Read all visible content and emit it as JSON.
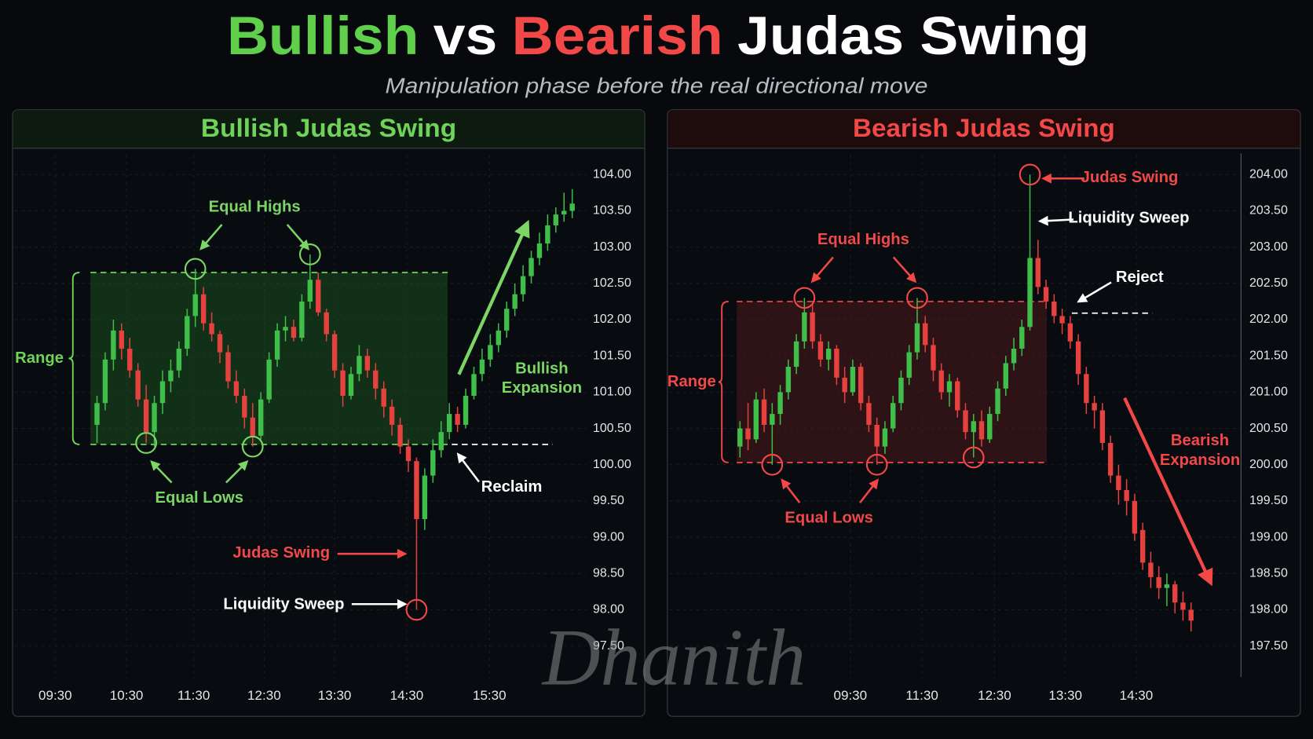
{
  "header": {
    "title_parts": [
      {
        "text": "Bullish",
        "color": "#5fcf4c"
      },
      {
        "text": "vs",
        "color": "#ffffff"
      },
      {
        "text": "Bearish",
        "color": "#f24848"
      },
      {
        "text": "Judas Swing",
        "color": "#ffffff"
      }
    ],
    "subtitle": "Manipulation phase before the real directional move",
    "watermark": "Dhanith"
  },
  "chart_data": [
    {
      "type": "candlestick",
      "title": "Bullish Judas Swing",
      "title_color": "#6fd35a",
      "up_color": "#3fbf4a",
      "down_color": "#e5413f",
      "grid": true,
      "ohlc": [
        [
          100.55,
          100.95,
          100.3,
          100.85
        ],
        [
          100.85,
          101.55,
          100.75,
          101.45
        ],
        [
          101.45,
          102.0,
          101.3,
          101.85
        ],
        [
          101.85,
          101.95,
          101.45,
          101.6
        ],
        [
          101.6,
          101.75,
          101.2,
          101.3
        ],
        [
          101.3,
          101.4,
          100.8,
          100.9
        ],
        [
          100.9,
          101.1,
          100.3,
          100.45
        ],
        [
          100.45,
          100.95,
          100.25,
          100.85
        ],
        [
          100.85,
          101.3,
          100.7,
          101.15
        ],
        [
          101.15,
          101.45,
          101.0,
          101.3
        ],
        [
          101.3,
          101.7,
          101.2,
          101.6
        ],
        [
          101.6,
          102.15,
          101.5,
          102.05
        ],
        [
          102.05,
          102.7,
          101.9,
          102.35
        ],
        [
          102.35,
          102.45,
          101.85,
          101.95
        ],
        [
          101.95,
          102.1,
          101.7,
          101.8
        ],
        [
          101.8,
          101.85,
          101.4,
          101.55
        ],
        [
          101.55,
          101.65,
          101.05,
          101.15
        ],
        [
          101.15,
          101.3,
          100.85,
          100.95
        ],
        [
          100.95,
          101.05,
          100.5,
          100.65
        ],
        [
          100.65,
          100.85,
          100.25,
          100.4
        ],
        [
          100.4,
          101.0,
          100.35,
          100.9
        ],
        [
          100.9,
          101.55,
          100.85,
          101.45
        ],
        [
          101.45,
          101.95,
          101.35,
          101.85
        ],
        [
          101.85,
          102.05,
          101.7,
          101.9
        ],
        [
          101.9,
          102.0,
          101.7,
          101.75
        ],
        [
          101.75,
          102.35,
          101.7,
          102.25
        ],
        [
          102.25,
          102.9,
          102.15,
          102.55
        ],
        [
          102.55,
          102.65,
          102.05,
          102.1
        ],
        [
          102.1,
          102.15,
          101.7,
          101.8
        ],
        [
          101.8,
          101.85,
          101.2,
          101.3
        ],
        [
          101.3,
          101.4,
          100.8,
          100.95
        ],
        [
          100.95,
          101.35,
          100.9,
          101.25
        ],
        [
          101.25,
          101.65,
          101.15,
          101.5
        ],
        [
          101.5,
          101.6,
          101.2,
          101.3
        ],
        [
          101.3,
          101.4,
          100.9,
          101.05
        ],
        [
          101.05,
          101.15,
          100.65,
          100.8
        ],
        [
          100.8,
          100.9,
          100.4,
          100.55
        ],
        [
          100.55,
          100.65,
          100.15,
          100.25
        ],
        [
          100.25,
          100.35,
          99.9,
          100.05
        ],
        [
          100.05,
          100.1,
          98.0,
          99.25
        ],
        [
          99.25,
          99.95,
          99.1,
          99.85
        ],
        [
          99.85,
          100.35,
          99.75,
          100.2
        ],
        [
          100.2,
          100.6,
          100.1,
          100.45
        ],
        [
          100.45,
          100.85,
          100.35,
          100.7
        ],
        [
          100.7,
          100.8,
          100.45,
          100.55
        ],
        [
          100.55,
          101.05,
          100.5,
          100.95
        ],
        [
          100.95,
          101.35,
          100.9,
          101.25
        ],
        [
          101.25,
          101.6,
          101.15,
          101.45
        ],
        [
          101.45,
          101.8,
          101.35,
          101.65
        ],
        [
          101.65,
          101.95,
          101.55,
          101.85
        ],
        [
          101.85,
          102.25,
          101.75,
          102.15
        ],
        [
          102.15,
          102.5,
          102.05,
          102.35
        ],
        [
          102.35,
          102.75,
          102.25,
          102.6
        ],
        [
          102.6,
          102.95,
          102.5,
          102.85
        ],
        [
          102.85,
          103.2,
          102.75,
          103.05
        ],
        [
          103.05,
          103.45,
          102.95,
          103.3
        ],
        [
          103.3,
          103.55,
          103.2,
          103.45
        ],
        [
          103.45,
          103.75,
          103.35,
          103.5
        ],
        [
          103.5,
          103.8,
          103.4,
          103.6
        ]
      ],
      "xlim": [
        -10,
        59.7
      ],
      "xticks": [
        {
          "value": -5.1,
          "label": "09:30"
        },
        {
          "value": 3.6,
          "label": "10:30"
        },
        {
          "value": 11.8,
          "label": "11:30"
        },
        {
          "value": 20.4,
          "label": "12:30"
        },
        {
          "value": 29.0,
          "label": "13:30"
        },
        {
          "value": 37.8,
          "label": "14:30"
        },
        {
          "value": 47.9,
          "label": "15:30"
        }
      ],
      "ylim": [
        97.05,
        104.27
      ],
      "yticks": [
        {
          "value": 97.5,
          "label": "97.50"
        },
        {
          "value": 98,
          "label": "98.00"
        },
        {
          "value": 98.5,
          "label": "98.50"
        },
        {
          "value": 99,
          "label": "99.00"
        },
        {
          "value": 99.5,
          "label": "99.50"
        },
        {
          "value": 100,
          "label": "100.00"
        },
        {
          "value": 100.5,
          "label": "100.50"
        },
        {
          "value": 101,
          "label": "101.00"
        },
        {
          "value": 101.5,
          "label": "101.50"
        },
        {
          "value": 102,
          "label": "102.00"
        },
        {
          "value": 102.5,
          "label": "102.50"
        },
        {
          "value": 103,
          "label": "103.00"
        },
        {
          "value": 103.5,
          "label": "103.50"
        },
        {
          "value": 104,
          "label": "104.00"
        }
      ],
      "range": {
        "label": "Range",
        "high": 102.65,
        "low": 100.28,
        "color": "#6fd35a",
        "fill": "#1f5a24"
      },
      "reference_level": 100.28,
      "annotations": [
        {
          "lines": [
            "Equal Highs"
          ],
          "color": "#7bd665"
        },
        {
          "lines": [
            "Equal Lows"
          ],
          "color": "#7bd665"
        },
        {
          "lines": [
            "Bullish",
            "Expansion"
          ],
          "color": "#7bd665"
        },
        {
          "lines": [
            "Reclaim"
          ],
          "color": "#ffffff"
        },
        {
          "lines": [
            "Judas Swing"
          ],
          "color": "#f24848"
        },
        {
          "lines": [
            "Liquidity Sweep"
          ],
          "color": "#ffffff"
        }
      ]
    },
    {
      "type": "candlestick",
      "title": "Bearish Judas Swing",
      "title_color": "#f24848",
      "up_color": "#3fbf4a",
      "down_color": "#e5413f",
      "grid": true,
      "ohlc": [
        [
          200.25,
          200.6,
          200.1,
          200.5
        ],
        [
          200.5,
          200.85,
          200.2,
          200.35
        ],
        [
          200.35,
          201.0,
          200.3,
          200.9
        ],
        [
          200.9,
          201.05,
          200.45,
          200.55
        ],
        [
          200.55,
          200.85,
          200.0,
          200.7
        ],
        [
          200.7,
          201.1,
          200.55,
          201.0
        ],
        [
          201.0,
          201.45,
          200.9,
          201.35
        ],
        [
          201.35,
          201.8,
          201.25,
          201.7
        ],
        [
          201.7,
          202.3,
          201.6,
          202.1
        ],
        [
          202.1,
          202.2,
          201.6,
          201.7
        ],
        [
          201.7,
          201.8,
          201.35,
          201.45
        ],
        [
          201.45,
          201.7,
          201.3,
          201.6
        ],
        [
          201.6,
          201.65,
          201.1,
          201.2
        ],
        [
          201.2,
          201.35,
          200.85,
          201.0
        ],
        [
          201.0,
          201.45,
          200.95,
          201.35
        ],
        [
          201.35,
          201.4,
          200.75,
          200.85
        ],
        [
          200.85,
          200.95,
          200.45,
          200.55
        ],
        [
          200.55,
          200.65,
          200.0,
          200.25
        ],
        [
          200.25,
          200.6,
          200.15,
          200.5
        ],
        [
          200.5,
          200.95,
          200.45,
          200.85
        ],
        [
          200.85,
          201.3,
          200.75,
          201.2
        ],
        [
          201.2,
          201.65,
          201.1,
          201.55
        ],
        [
          201.55,
          202.3,
          201.45,
          201.95
        ],
        [
          201.95,
          202.05,
          201.55,
          201.65
        ],
        [
          201.65,
          201.75,
          201.15,
          201.3
        ],
        [
          201.3,
          201.4,
          200.9,
          201.0
        ],
        [
          201.0,
          201.25,
          200.8,
          201.15
        ],
        [
          201.15,
          201.2,
          200.65,
          200.75
        ],
        [
          200.75,
          200.85,
          200.35,
          200.45
        ],
        [
          200.45,
          200.7,
          200.1,
          200.6
        ],
        [
          200.6,
          200.75,
          200.25,
          200.35
        ],
        [
          200.35,
          200.8,
          200.3,
          200.7
        ],
        [
          200.7,
          201.15,
          200.6,
          201.05
        ],
        [
          201.05,
          201.5,
          200.95,
          201.4
        ],
        [
          201.4,
          201.75,
          201.3,
          201.6
        ],
        [
          201.6,
          202.0,
          201.5,
          201.9
        ],
        [
          201.9,
          204.0,
          201.85,
          202.85
        ],
        [
          202.85,
          203.1,
          202.35,
          202.45
        ],
        [
          202.45,
          202.55,
          202.15,
          202.25
        ],
        [
          202.25,
          202.35,
          201.95,
          202.05
        ],
        [
          202.05,
          202.15,
          201.8,
          201.95
        ],
        [
          201.95,
          202.05,
          201.6,
          201.7
        ],
        [
          201.7,
          201.8,
          201.1,
          201.25
        ],
        [
          201.25,
          201.35,
          200.7,
          200.85
        ],
        [
          200.85,
          200.95,
          200.5,
          200.75
        ],
        [
          200.75,
          200.85,
          200.2,
          200.3
        ],
        [
          200.3,
          200.4,
          199.75,
          199.85
        ],
        [
          199.85,
          200.0,
          199.45,
          199.65
        ],
        [
          199.65,
          199.8,
          199.3,
          199.5
        ],
        [
          199.5,
          199.6,
          198.95,
          199.05
        ],
        [
          199.1,
          199.2,
          198.55,
          198.65
        ],
        [
          198.65,
          198.8,
          198.3,
          198.45
        ],
        [
          198.45,
          198.6,
          198.15,
          198.3
        ],
        [
          198.3,
          198.5,
          198.05,
          198.35
        ],
        [
          198.35,
          198.4,
          197.95,
          198.1
        ],
        [
          198.1,
          198.25,
          197.85,
          198.0
        ],
        [
          198.0,
          198.1,
          197.7,
          197.85
        ]
      ],
      "xlim": [
        -8.7,
        62.2
      ],
      "xticks": [
        {
          "value": 13.7,
          "label": "09:30"
        },
        {
          "value": 22.6,
          "label": "11:30"
        },
        {
          "value": 31.6,
          "label": "12:30"
        },
        {
          "value": 40.4,
          "label": "13:30"
        },
        {
          "value": 49.2,
          "label": "14:30"
        }
      ],
      "ylim": [
        197.05,
        204.27
      ],
      "yticks": [
        {
          "value": 197.5,
          "label": "197.50"
        },
        {
          "value": 198,
          "label": "198.00"
        },
        {
          "value": 198.5,
          "label": "198.50"
        },
        {
          "value": 199,
          "label": "199.00"
        },
        {
          "value": 199.5,
          "label": "199.50"
        },
        {
          "value": 200,
          "label": "200.00"
        },
        {
          "value": 200.5,
          "label": "200.50"
        },
        {
          "value": 201,
          "label": "201.00"
        },
        {
          "value": 201.5,
          "label": "201.50"
        },
        {
          "value": 202,
          "label": "202.00"
        },
        {
          "value": 202.5,
          "label": "202.50"
        },
        {
          "value": 203,
          "label": "203.00"
        },
        {
          "value": 203.5,
          "label": "203.50"
        },
        {
          "value": 204,
          "label": "204.00"
        }
      ],
      "range": {
        "label": "Range",
        "high": 202.25,
        "low": 200.03,
        "color": "#f24848",
        "fill": "#5a1c1c"
      },
      "reference_level": 202.09,
      "annotations": [
        {
          "lines": [
            "Judas Swing"
          ],
          "color": "#f24848"
        },
        {
          "lines": [
            "Liquidity Sweep"
          ],
          "color": "#ffffff"
        },
        {
          "lines": [
            "Reject"
          ],
          "color": "#ffffff"
        },
        {
          "lines": [
            "Equal Highs"
          ],
          "color": "#f24848"
        },
        {
          "lines": [
            "Equal Lows"
          ],
          "color": "#f24848"
        },
        {
          "lines": [
            "Bearish",
            "Expansion"
          ],
          "color": "#f24848"
        }
      ]
    }
  ]
}
